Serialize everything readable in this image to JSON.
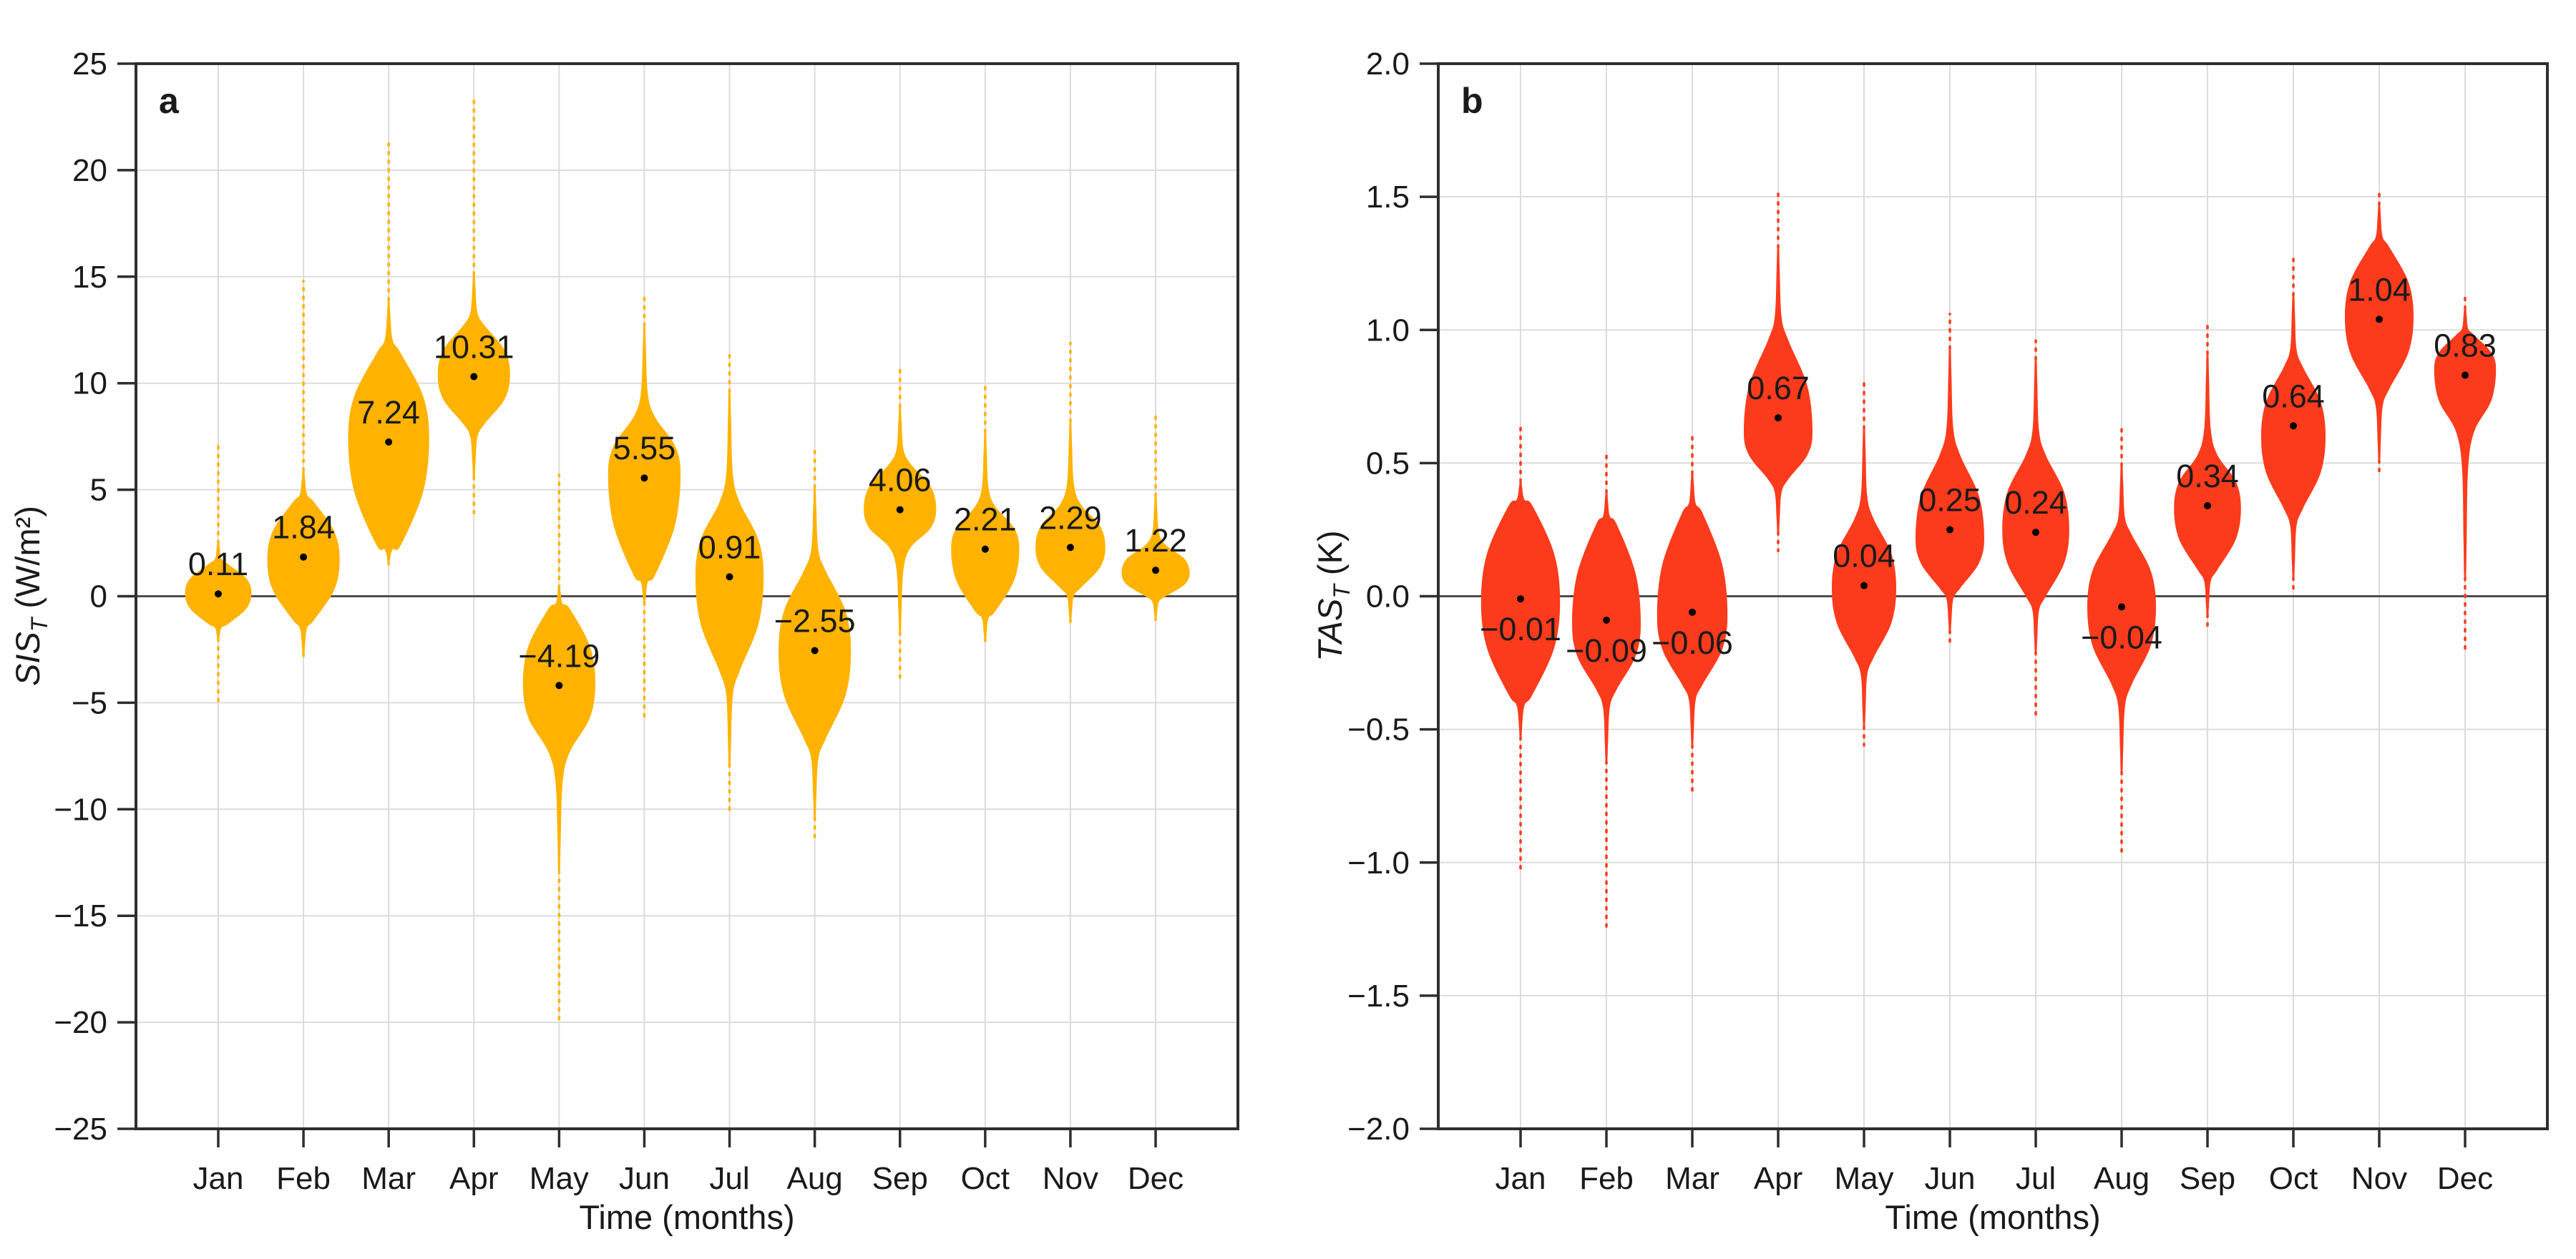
{
  "figure": {
    "background": "#ffffff",
    "text_color": "#1a1a1a",
    "grid_color": "#DCDCDC",
    "spine_color": "#2E2E2E",
    "zero_line_color": "#4D4D4D",
    "mean_dot_color": "#000000"
  },
  "chart_data": [
    {
      "type": "violin",
      "panel_label": "a",
      "xlabel": "Time (months)",
      "ylabel": {
        "name_italic": "SIS",
        "name_sub": "T",
        "units": " (W/m²)"
      },
      "color": "#FFB300",
      "ylim": [
        -25,
        25
      ],
      "yticks": [
        25,
        20,
        15,
        10,
        5,
        0,
        -5,
        -10,
        -15,
        -20,
        -25
      ],
      "ytick_labels": [
        "25",
        "20",
        "15",
        "10",
        "5",
        "0",
        "−5",
        "−10",
        "−15",
        "−20",
        "−25"
      ],
      "grid": true,
      "categories": [
        "Jan",
        "Feb",
        "Mar",
        "Apr",
        "May",
        "Jun",
        "Jul",
        "Aug",
        "Sep",
        "Oct",
        "Nov",
        "Dec"
      ],
      "violins": [
        {
          "month": "Jan",
          "mean": 0.11,
          "label": "0.11",
          "label_side": "above",
          "body": [
            -1.3,
            1.5
          ],
          "peak": 0.15,
          "hw": 0.78,
          "spike": [
            -2.0,
            2.5
          ],
          "dots": [
            -5.2,
            7.2
          ]
        },
        {
          "month": "Feb",
          "mean": 1.84,
          "label": "1.84",
          "label_side": "above",
          "body": [
            -1.1,
            4.4
          ],
          "peak": 1.7,
          "hw": 0.85,
          "spike": [
            -2.7,
            5.9
          ],
          "dots": [
            -3.1,
            14.8
          ]
        },
        {
          "month": "Mar",
          "mean": 7.24,
          "label": "7.24",
          "label_side": "above",
          "body": [
            2.4,
            11.4
          ],
          "peak": 7.4,
          "hw": 0.95,
          "spike": [
            1.6,
            13.9
          ],
          "dots": [
            1.2,
            21.3
          ]
        },
        {
          "month": "Apr",
          "mean": 10.31,
          "label": "10.31",
          "label_side": "above",
          "body": [
            8.1,
            12.7
          ],
          "peak": 10.4,
          "hw": 0.85,
          "spike": [
            5.6,
            15.1
          ],
          "dots": [
            3.9,
            23.4
          ]
        },
        {
          "month": "May",
          "mean": -4.19,
          "label": "−4.19",
          "label_side": "above",
          "body": [
            -7.3,
            -0.6
          ],
          "peak": -4.1,
          "hw": 0.85,
          "spike": [
            -12.9,
            0.4
          ],
          "dots": [
            -19.9,
            5.7
          ]
        },
        {
          "month": "Jun",
          "mean": 5.55,
          "label": "5.55",
          "label_side": "above",
          "body": [
            1.0,
            8.4
          ],
          "peak": 5.7,
          "hw": 0.85,
          "spike": [
            -0.3,
            12.7
          ],
          "dots": [
            -5.8,
            14.3
          ]
        },
        {
          "month": "Jul",
          "mean": 0.91,
          "label": "0.91",
          "label_side": "above",
          "body": [
            -3.5,
            4.4
          ],
          "peak": 0.9,
          "hw": 0.8,
          "spike": [
            -7.9,
            9.6
          ],
          "dots": [
            -10.3,
            11.6
          ]
        },
        {
          "month": "Aug",
          "mean": -2.55,
          "label": "−2.55",
          "label_side": "above",
          "body": [
            -6.7,
            1.2
          ],
          "peak": -2.6,
          "hw": 0.85,
          "spike": [
            -10.4,
            5.1
          ],
          "dots": [
            -11.5,
            6.9
          ]
        },
        {
          "month": "Sep",
          "mean": 4.06,
          "label": "4.06",
          "label_side": "above",
          "body": [
            2.3,
            6.2
          ],
          "peak": 4.1,
          "hw": 0.85,
          "spike": [
            -1.7,
            8.9
          ],
          "dots": [
            -4.0,
            10.9
          ]
        },
        {
          "month": "Oct",
          "mean": 2.21,
          "label": "2.21",
          "label_side": "above",
          "body": [
            -0.7,
            4.2
          ],
          "peak": 2.2,
          "hw": 0.8,
          "spike": [
            -2.0,
            7.7
          ],
          "dots": [
            -2.3,
            10.0
          ]
        },
        {
          "month": "Nov",
          "mean": 2.29,
          "label": "2.29",
          "label_side": "above",
          "body": [
            0.4,
            4.3
          ],
          "peak": 2.3,
          "hw": 0.82,
          "spike": [
            -1.1,
            8.2
          ],
          "dots": [
            -1.3,
            11.9
          ]
        },
        {
          "month": "Dec",
          "mean": 1.22,
          "label": "1.22",
          "label_side": "above",
          "body": [
            0.0,
            2.4
          ],
          "peak": 1.1,
          "hw": 0.8,
          "spike": [
            -1.0,
            4.7
          ],
          "dots": [
            -1.2,
            8.7
          ]
        }
      ]
    },
    {
      "type": "violin",
      "panel_label": "b",
      "xlabel": "Time (months)",
      "ylabel": {
        "name_italic": "TAS",
        "name_sub": "T",
        "units": " (K)"
      },
      "color": "#FB3B1C",
      "ylim": [
        -2.0,
        2.0
      ],
      "yticks": [
        2.0,
        1.5,
        1.0,
        0.5,
        0.0,
        -0.5,
        -1.0,
        -1.5,
        -2.0
      ],
      "ytick_labels": [
        "2.0",
        "1.5",
        "1.0",
        "0.5",
        "0.0",
        "−0.5",
        "−1.0",
        "−1.5",
        "−2.0"
      ],
      "grid": true,
      "categories": [
        "Jan",
        "Feb",
        "Mar",
        "Apr",
        "May",
        "Jun",
        "Jul",
        "Aug",
        "Sep",
        "Oct",
        "Nov",
        "Dec"
      ],
      "violins": [
        {
          "month": "Jan",
          "mean": -0.01,
          "label": "−0.01",
          "label_side": "below",
          "body": [
            -0.37,
            0.34
          ],
          "peak": -0.02,
          "hw": 0.92,
          "spike": [
            -0.53,
            0.43
          ],
          "dots": [
            -1.03,
            0.64
          ]
        },
        {
          "month": "Feb",
          "mean": -0.09,
          "label": "−0.09",
          "label_side": "below",
          "body": [
            -0.35,
            0.27
          ],
          "peak": -0.1,
          "hw": 0.8,
          "spike": [
            -0.62,
            0.39
          ],
          "dots": [
            -1.25,
            0.53
          ]
        },
        {
          "month": "Mar",
          "mean": -0.06,
          "label": "−0.06",
          "label_side": "below",
          "body": [
            -0.33,
            0.31
          ],
          "peak": -0.07,
          "hw": 0.82,
          "spike": [
            -0.56,
            0.46
          ],
          "dots": [
            -0.73,
            0.61
          ]
        },
        {
          "month": "Apr",
          "mean": 0.67,
          "label": "0.67",
          "label_side": "above",
          "body": [
            0.44,
            0.96
          ],
          "peak": 0.62,
          "hw": 0.8,
          "spike": [
            0.24,
            1.31
          ],
          "dots": [
            0.17,
            1.53
          ]
        },
        {
          "month": "May",
          "mean": 0.04,
          "label": "0.04",
          "label_side": "above",
          "body": [
            -0.23,
            0.29
          ],
          "peak": 0.03,
          "hw": 0.75,
          "spike": [
            -0.49,
            0.63
          ],
          "dots": [
            -0.56,
            0.81
          ]
        },
        {
          "month": "Jun",
          "mean": 0.25,
          "label": "0.25",
          "label_side": "above",
          "body": [
            0.03,
            0.53
          ],
          "peak": 0.22,
          "hw": 0.8,
          "spike": [
            -0.13,
            0.93
          ],
          "dots": [
            -0.19,
            1.06
          ]
        },
        {
          "month": "Jul",
          "mean": 0.24,
          "label": "0.24",
          "label_side": "above",
          "body": [
            0.0,
            0.53
          ],
          "peak": 0.25,
          "hw": 0.78,
          "spike": [
            -0.21,
            0.89
          ],
          "dots": [
            -0.46,
            0.96
          ]
        },
        {
          "month": "Aug",
          "mean": -0.04,
          "label": "−0.04",
          "label_side": "below",
          "body": [
            -0.33,
            0.23
          ],
          "peak": -0.04,
          "hw": 0.8,
          "spike": [
            -0.66,
            0.49
          ],
          "dots": [
            -0.98,
            0.63
          ]
        },
        {
          "month": "Sep",
          "mean": 0.34,
          "label": "0.34",
          "label_side": "above",
          "body": [
            0.1,
            0.53
          ],
          "peak": 0.33,
          "hw": 0.78,
          "spike": [
            -0.07,
            0.91
          ],
          "dots": [
            -0.13,
            1.03
          ]
        },
        {
          "month": "Oct",
          "mean": 0.64,
          "label": "0.64",
          "label_side": "above",
          "body": [
            0.33,
            0.86
          ],
          "peak": 0.6,
          "hw": 0.75,
          "spike": [
            0.07,
            1.13
          ],
          "dots": [
            0.01,
            1.28
          ]
        },
        {
          "month": "Nov",
          "mean": 1.04,
          "label": "1.04",
          "label_side": "above",
          "body": [
            0.78,
            1.31
          ],
          "peak": 1.05,
          "hw": 0.8,
          "spike": [
            0.51,
            1.47
          ],
          "dots": [
            0.47,
            1.53
          ]
        },
        {
          "month": "Dec",
          "mean": 0.83,
          "label": "0.83",
          "label_side": "above",
          "body": [
            0.62,
            0.98
          ],
          "peak": 0.85,
          "hw": 0.72,
          "spike": [
            0.07,
            1.08
          ],
          "dots": [
            -0.21,
            1.13
          ]
        }
      ]
    }
  ]
}
